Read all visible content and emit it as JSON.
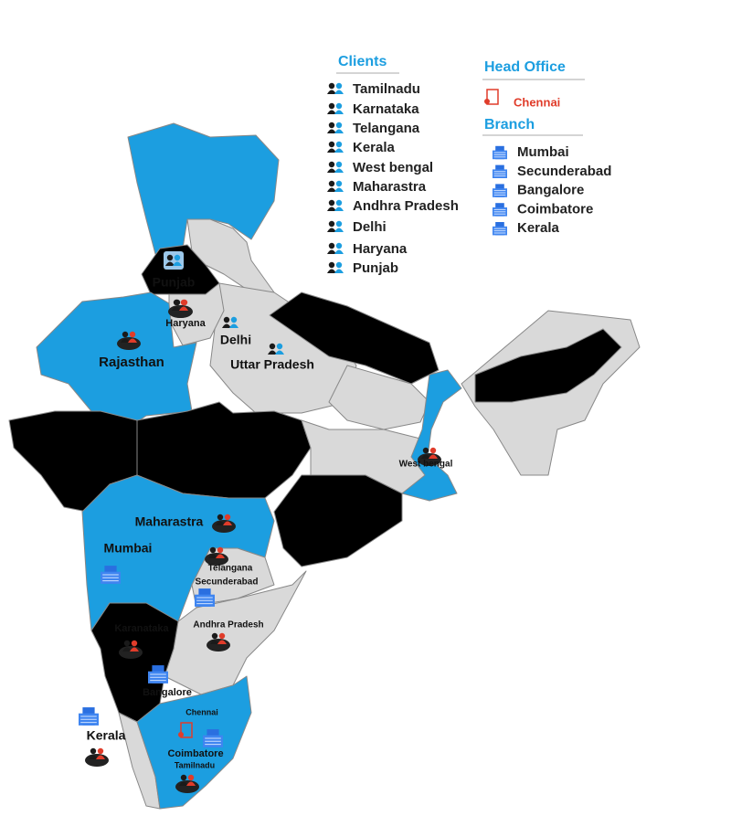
{
  "legend": {
    "clients": {
      "title": "Clients",
      "items": [
        "Tamilnadu",
        "Karnataka",
        "Telangana",
        "Kerala",
        "West bengal",
        "Maharastra",
        "Andhra Pradesh",
        "Delhi",
        "Haryana",
        "Punjab"
      ]
    },
    "head_office": {
      "title": "Head Office",
      "items": [
        "Chennai"
      ]
    },
    "branch": {
      "title": "Branch",
      "items": [
        "Mumbai",
        "Secunderabad",
        "Bangalore",
        "Coimbatore",
        "Kerala"
      ]
    }
  },
  "map": {
    "labels": [
      "Punjab",
      "Haryana",
      "Delhi",
      "Rajasthan",
      "Uttar Pradesh",
      "West bengal",
      "Maharastra",
      "Mumbai",
      "Telangana",
      "Secunderabad",
      "Andhra Pradesh",
      "Karanataka",
      "Bangalore",
      "Kerala",
      "Chennai",
      "Coimbatore",
      "Tamilnadu"
    ]
  }
}
